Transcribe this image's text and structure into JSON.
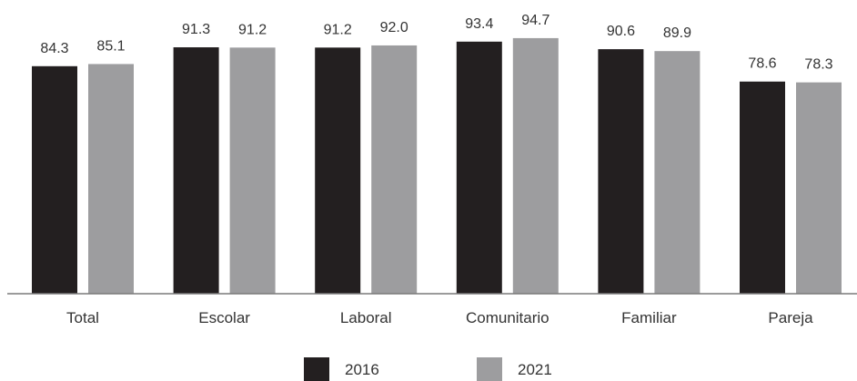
{
  "chart_data": {
    "type": "bar",
    "title": "",
    "xlabel": "",
    "ylabel": "",
    "categories": [
      "Total",
      "Escolar",
      "Laboral",
      "Comunitario",
      "Familiar",
      "Pareja"
    ],
    "series": [
      {
        "name": "2016",
        "color": "#231f20",
        "values": [
          84.3,
          91.3,
          91.2,
          93.4,
          90.6,
          78.6
        ],
        "labels": [
          "84.3",
          "91.3",
          "91.2",
          "93.4",
          "90.6",
          "78.6"
        ]
      },
      {
        "name": "2021",
        "color": "#9d9d9f",
        "values": [
          85.1,
          91.2,
          92.0,
          94.7,
          89.9,
          78.3
        ],
        "labels": [
          "85.1",
          "91.2",
          "92.0",
          "94.7",
          "89.9",
          "78.3"
        ]
      }
    ],
    "ylim": [
      0,
      100
    ],
    "grid": false,
    "legend_position": "bottom-center"
  }
}
